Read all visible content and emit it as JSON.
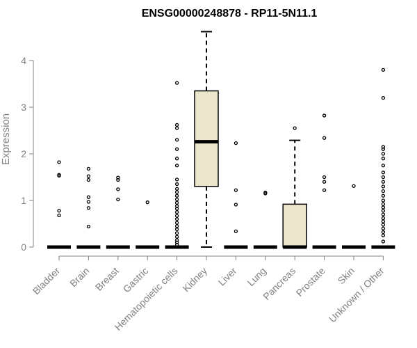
{
  "chart_data": {
    "type": "boxplot",
    "title": "ENSG00000248878 - RP11-5N11.1",
    "xlabel": "",
    "ylabel": "Expression",
    "ylim": [
      0,
      4.6
    ],
    "yticks": [
      0,
      1,
      2,
      3,
      4
    ],
    "colors": {
      "box_fill": "#ece6cc",
      "line": "#000000",
      "axis": "#808080",
      "text": "#808080",
      "title": "#000000"
    },
    "categories": [
      "Bladder",
      "Brain",
      "Breast",
      "Gastric",
      "Hematopoietic cells",
      "Kidney",
      "Liver",
      "Lung",
      "Pancreas",
      "Prostate",
      "Skin",
      "Unknown / Other"
    ],
    "boxes": [
      {
        "label": "Bladder",
        "min": 0,
        "q1": 0,
        "median": 0,
        "q3": 0,
        "max": 0,
        "outliers": [
          0.68,
          0.78,
          1.53,
          1.55,
          1.82
        ]
      },
      {
        "label": "Brain",
        "min": 0,
        "q1": 0,
        "median": 0,
        "q3": 0,
        "max": 0,
        "outliers": [
          0.44,
          0.84,
          0.97,
          1.07,
          1.44,
          1.52,
          1.68
        ]
      },
      {
        "label": "Breast",
        "min": 0,
        "q1": 0,
        "median": 0,
        "q3": 0,
        "max": 0,
        "outliers": [
          1.02,
          1.24,
          1.44,
          1.49
        ]
      },
      {
        "label": "Gastric",
        "min": 0,
        "q1": 0,
        "median": 0,
        "q3": 0,
        "max": 0,
        "outliers": [
          0.96
        ]
      },
      {
        "label": "Hematopoietic cells",
        "min": 0,
        "q1": 0,
        "median": 0,
        "q3": 0,
        "max": 0,
        "outliers": [
          0.05,
          0.1,
          0.15,
          0.22,
          0.3,
          0.38,
          0.45,
          0.52,
          0.6,
          0.67,
          0.75,
          0.82,
          0.88,
          0.95,
          1.02,
          1.1,
          1.18,
          1.25,
          1.35,
          1.45,
          1.75,
          1.9,
          2.1,
          2.3,
          2.55,
          2.62,
          3.52
        ]
      },
      {
        "label": "Kidney",
        "min": 0,
        "q1": 1.3,
        "median": 2.26,
        "q3": 3.35,
        "max": 4.62,
        "outliers": []
      },
      {
        "label": "Liver",
        "min": 0,
        "q1": 0,
        "median": 0,
        "q3": 0,
        "max": 0,
        "outliers": [
          0.34,
          0.91,
          1.22,
          2.23
        ]
      },
      {
        "label": "Lung",
        "min": 0,
        "q1": 0,
        "median": 0,
        "q3": 0,
        "max": 0,
        "outliers": [
          1.15,
          1.17
        ]
      },
      {
        "label": "Pancreas",
        "min": 0,
        "q1": 0,
        "median": 0,
        "q3": 0.92,
        "max": 2.29,
        "outliers": [
          2.55
        ]
      },
      {
        "label": "Prostate",
        "min": 0,
        "q1": 0,
        "median": 0,
        "q3": 0,
        "max": 0,
        "outliers": [
          1.22,
          1.4,
          1.5,
          2.34,
          2.82
        ]
      },
      {
        "label": "Skin",
        "min": 0,
        "q1": 0,
        "median": 0,
        "q3": 0,
        "max": 0,
        "outliers": [
          1.31
        ]
      },
      {
        "label": "Unknown / Other",
        "min": 0,
        "q1": 0,
        "median": 0,
        "q3": 0,
        "max": 0,
        "outliers": [
          0.12,
          0.25,
          0.32,
          0.4,
          0.48,
          0.55,
          0.62,
          0.7,
          0.78,
          0.85,
          0.92,
          1.0,
          1.1,
          1.2,
          1.3,
          1.4,
          1.5,
          1.6,
          1.75,
          1.9,
          2.0,
          2.1,
          2.15,
          3.2,
          3.8
        ]
      }
    ]
  }
}
